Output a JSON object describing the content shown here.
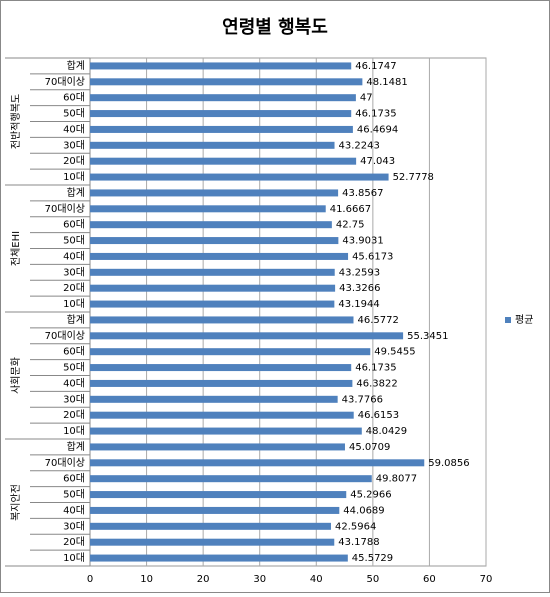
{
  "chart_data": {
    "type": "bar",
    "title": "연령별 행복도",
    "groups": [
      {
        "name": "전반적행복도",
        "categories": [
          "합계",
          "70대이상",
          "60대",
          "50대",
          "40대",
          "30대",
          "20대",
          "10대"
        ]
      },
      {
        "name": "전체EHI",
        "categories": [
          "합계",
          "70대이상",
          "60대",
          "50대",
          "40대",
          "30대",
          "20대",
          "10대"
        ]
      },
      {
        "name": "사회문화",
        "categories": [
          "합계",
          "70대이상",
          "60대",
          "50대",
          "40대",
          "30대",
          "20대",
          "10대"
        ]
      },
      {
        "name": "복지안전",
        "categories": [
          "합계",
          "70대이상",
          "60대",
          "50대",
          "40대",
          "30대",
          "20대",
          "10대"
        ]
      }
    ],
    "series": [
      {
        "name": "평균",
        "color": "#4f81bd",
        "values": [
          46.1747,
          48.1481,
          47,
          46.1735,
          46.4694,
          43.2243,
          47.043,
          52.7778,
          43.8567,
          41.6667,
          42.75,
          43.9031,
          45.6173,
          43.2593,
          43.3266,
          43.1944,
          46.5772,
          55.3451,
          49.5455,
          46.1735,
          46.3822,
          43.7766,
          46.6153,
          48.0429,
          45.0709,
          59.0856,
          49.8077,
          45.2966,
          44.0689,
          42.5964,
          43.1788,
          45.5729
        ]
      }
    ],
    "xlim": [
      0,
      70
    ],
    "xticks": [
      0,
      10,
      20,
      30,
      40,
      50,
      60,
      70
    ],
    "grid": true,
    "legend": "right"
  }
}
